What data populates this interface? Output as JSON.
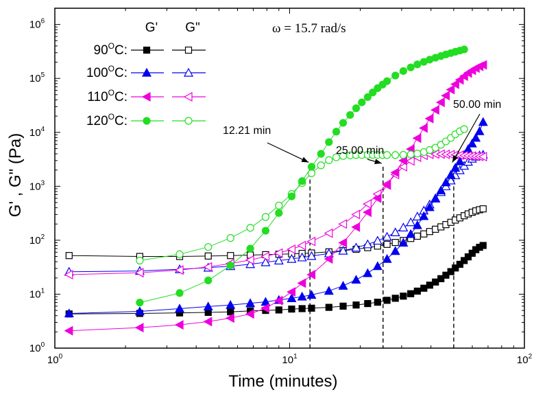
{
  "chart_data": {
    "type": "scatter",
    "xlabel": "Time (minutes)",
    "ylabel": "G' , G\" (Pa)",
    "x_scale": "log",
    "y_scale": "log",
    "xlim": [
      1,
      100
    ],
    "ylim": [
      1,
      2000000
    ],
    "x_ticks": [
      {
        "base": "10",
        "exp": "0",
        "value": 1
      },
      {
        "base": "10",
        "exp": "1",
        "value": 10
      },
      {
        "base": "10",
        "exp": "2",
        "value": 100
      }
    ],
    "y_ticks": [
      {
        "base": "10",
        "exp": "0",
        "value": 1
      },
      {
        "base": "10",
        "exp": "1",
        "value": 10
      },
      {
        "base": "10",
        "exp": "2",
        "value": 100
      },
      {
        "base": "10",
        "exp": "3",
        "value": 1000
      },
      {
        "base": "10",
        "exp": "4",
        "value": 10000
      },
      {
        "base": "10",
        "exp": "5",
        "value": 100000
      },
      {
        "base": "10",
        "exp": "6",
        "value": 1000000
      }
    ],
    "grid": false,
    "legend_position": "top-left",
    "legend_headers": [
      "G'",
      "G\""
    ],
    "annotation_top": "ω = 15.7 rad/s",
    "series": [
      {
        "temp": "90",
        "unit": "C:",
        "color": "#000000",
        "marker": "square",
        "gp": [
          [
            1.15,
            4.3
          ],
          [
            2.3,
            4.4
          ],
          [
            3.4,
            4.5
          ],
          [
            4.5,
            4.6
          ],
          [
            5.6,
            4.7
          ],
          [
            6.8,
            4.9
          ],
          [
            7.9,
            5.0
          ],
          [
            9.0,
            5.1
          ],
          [
            10.2,
            5.3
          ],
          [
            11.3,
            5.4
          ],
          [
            12.4,
            5.5
          ],
          [
            14.7,
            5.7
          ],
          [
            16.9,
            6.0
          ],
          [
            19.2,
            6.3
          ],
          [
            21.5,
            6.7
          ],
          [
            23.7,
            7.1
          ],
          [
            26.0,
            7.7
          ],
          [
            28.2,
            8.4
          ],
          [
            30.5,
            9.2
          ],
          [
            32.8,
            10.2
          ],
          [
            35.0,
            11.4
          ],
          [
            37.3,
            12.9
          ],
          [
            39.5,
            14.7
          ],
          [
            41.8,
            16.8
          ],
          [
            44.1,
            19.4
          ],
          [
            46.3,
            22.5
          ],
          [
            48.6,
            26.2
          ],
          [
            50.8,
            30.6
          ],
          [
            53.1,
            35.8
          ],
          [
            55.4,
            42.0
          ],
          [
            57.6,
            49.2
          ],
          [
            59.9,
            57.4
          ],
          [
            62.1,
            66.8
          ],
          [
            64.4,
            74.0
          ],
          [
            66.7,
            80.0
          ]
        ],
        "gpp": [
          [
            1.15,
            52
          ],
          [
            2.3,
            50
          ],
          [
            3.4,
            50
          ],
          [
            4.5,
            51
          ],
          [
            5.6,
            52
          ],
          [
            6.8,
            53
          ],
          [
            7.9,
            54
          ],
          [
            9.0,
            55
          ],
          [
            10.2,
            56
          ],
          [
            11.3,
            57
          ],
          [
            12.4,
            58
          ],
          [
            14.7,
            61
          ],
          [
            16.9,
            64
          ],
          [
            19.2,
            68
          ],
          [
            21.5,
            73
          ],
          [
            23.7,
            78
          ],
          [
            26.0,
            84
          ],
          [
            28.2,
            91
          ],
          [
            30.5,
            99
          ],
          [
            32.8,
            108
          ],
          [
            35.0,
            119
          ],
          [
            37.3,
            131
          ],
          [
            39.5,
            145
          ],
          [
            41.8,
            160
          ],
          [
            44.1,
            177
          ],
          [
            46.3,
            195
          ],
          [
            48.6,
            215
          ],
          [
            50.8,
            237
          ],
          [
            53.1,
            260
          ],
          [
            55.4,
            285
          ],
          [
            57.6,
            308
          ],
          [
            59.9,
            330
          ],
          [
            62.1,
            350
          ],
          [
            64.4,
            368
          ],
          [
            66.7,
            382
          ]
        ]
      },
      {
        "temp": "100",
        "unit": "C:",
        "color": "#0000ee",
        "marker": "triangle-up",
        "gp": [
          [
            1.15,
            4.4
          ],
          [
            2.3,
            4.8
          ],
          [
            3.4,
            5.4
          ],
          [
            4.5,
            5.9
          ],
          [
            5.6,
            6.3
          ],
          [
            6.8,
            6.8
          ],
          [
            7.9,
            7.2
          ],
          [
            9.0,
            7.8
          ],
          [
            10.2,
            8.4
          ],
          [
            11.3,
            9.0
          ],
          [
            12.4,
            9.7
          ],
          [
            14.7,
            11.5
          ],
          [
            16.9,
            14.3
          ],
          [
            19.2,
            18.5
          ],
          [
            21.5,
            24.5
          ],
          [
            23.7,
            33
          ],
          [
            26.0,
            45
          ],
          [
            28.2,
            63
          ],
          [
            30.5,
            90
          ],
          [
            32.8,
            130
          ],
          [
            35.0,
            190
          ],
          [
            37.3,
            280
          ],
          [
            39.5,
            410
          ],
          [
            41.8,
            590
          ],
          [
            44.1,
            840
          ],
          [
            46.3,
            1180
          ],
          [
            48.6,
            1630
          ],
          [
            50.8,
            2200
          ],
          [
            53.1,
            2900
          ],
          [
            55.4,
            3800
          ],
          [
            57.6,
            4900
          ],
          [
            59.9,
            6200
          ],
          [
            62.1,
            7900
          ],
          [
            64.4,
            10500
          ],
          [
            66.7,
            15500
          ]
        ],
        "gpp": [
          [
            1.15,
            26
          ],
          [
            2.3,
            27
          ],
          [
            3.4,
            29
          ],
          [
            4.5,
            31
          ],
          [
            5.6,
            33
          ],
          [
            6.8,
            36
          ],
          [
            7.9,
            39
          ],
          [
            9.0,
            42
          ],
          [
            10.2,
            45
          ],
          [
            11.3,
            48
          ],
          [
            12.4,
            51
          ],
          [
            14.7,
            57
          ],
          [
            16.9,
            64
          ],
          [
            19.2,
            73
          ],
          [
            21.5,
            84
          ],
          [
            23.7,
            98
          ],
          [
            26.0,
            116
          ],
          [
            28.2,
            140
          ],
          [
            30.5,
            172
          ],
          [
            32.8,
            215
          ],
          [
            35.0,
            275
          ],
          [
            37.3,
            355
          ],
          [
            39.5,
            460
          ],
          [
            41.8,
            600
          ],
          [
            44.1,
            780
          ],
          [
            46.3,
            1000
          ],
          [
            48.6,
            1280
          ],
          [
            50.8,
            1600
          ],
          [
            53.1,
            1980
          ],
          [
            55.4,
            2400
          ],
          [
            57.6,
            2850
          ],
          [
            59.9,
            3250
          ],
          [
            62.1,
            3550
          ],
          [
            64.4,
            3750
          ],
          [
            66.7,
            3850
          ]
        ]
      },
      {
        "temp": "110",
        "unit": "C:",
        "color": "#ee00dd",
        "marker": "triangle-left",
        "gp": [
          [
            1.15,
            2.1
          ],
          [
            2.3,
            2.4
          ],
          [
            3.4,
            2.7
          ],
          [
            4.5,
            3.1
          ],
          [
            5.6,
            3.6
          ],
          [
            6.8,
            4.3
          ],
          [
            7.9,
            5.5
          ],
          [
            9.0,
            7.6
          ],
          [
            10.2,
            11
          ],
          [
            11.3,
            16
          ],
          [
            12.4,
            23
          ],
          [
            14.7,
            45
          ],
          [
            16.9,
            90
          ],
          [
            19.2,
            175
          ],
          [
            21.5,
            330
          ],
          [
            23.7,
            600
          ],
          [
            26.0,
            1050
          ],
          [
            28.2,
            1800
          ],
          [
            30.5,
            3000
          ],
          [
            32.8,
            4900
          ],
          [
            35.0,
            7800
          ],
          [
            37.3,
            12000
          ],
          [
            39.5,
            18000
          ],
          [
            41.8,
            26000
          ],
          [
            44.1,
            36000
          ],
          [
            46.3,
            48000
          ],
          [
            48.6,
            62000
          ],
          [
            50.8,
            78000
          ],
          [
            53.1,
            94000
          ],
          [
            55.4,
            110000
          ],
          [
            57.6,
            126000
          ],
          [
            59.9,
            141000
          ],
          [
            62.1,
            155000
          ],
          [
            64.4,
            167000
          ],
          [
            66.7,
            178000
          ]
        ],
        "gpp": [
          [
            1.15,
            23
          ],
          [
            2.3,
            25
          ],
          [
            3.4,
            28
          ],
          [
            4.5,
            32
          ],
          [
            5.6,
            37
          ],
          [
            6.8,
            43
          ],
          [
            7.9,
            50
          ],
          [
            9.0,
            58
          ],
          [
            10.2,
            68
          ],
          [
            11.3,
            80
          ],
          [
            12.4,
            95
          ],
          [
            14.7,
            135
          ],
          [
            16.9,
            200
          ],
          [
            19.2,
            300
          ],
          [
            21.5,
            470
          ],
          [
            23.7,
            720
          ],
          [
            26.0,
            1100
          ],
          [
            28.2,
            1650
          ],
          [
            30.5,
            2300
          ],
          [
            32.8,
            2950
          ],
          [
            35.0,
            3450
          ],
          [
            37.3,
            3750
          ],
          [
            39.5,
            3900
          ],
          [
            41.8,
            3950
          ],
          [
            44.1,
            3950
          ],
          [
            46.3,
            3920
          ],
          [
            48.6,
            3870
          ],
          [
            50.8,
            3820
          ],
          [
            53.1,
            3770
          ],
          [
            55.4,
            3720
          ],
          [
            57.6,
            3680
          ],
          [
            59.9,
            3640
          ],
          [
            62.1,
            3600
          ],
          [
            64.4,
            3570
          ],
          [
            66.7,
            3550
          ]
        ]
      },
      {
        "temp": "120",
        "unit": "C:",
        "color": "#22dd22",
        "marker": "circle",
        "gp": [
          [
            2.3,
            7
          ],
          [
            3.4,
            10.5
          ],
          [
            4.5,
            18
          ],
          [
            5.6,
            34
          ],
          [
            6.8,
            70
          ],
          [
            7.9,
            150
          ],
          [
            9.0,
            320
          ],
          [
            10.2,
            650
          ],
          [
            11.3,
            1250
          ],
          [
            12.4,
            2300
          ],
          [
            13.6,
            4000
          ],
          [
            14.7,
            6600
          ],
          [
            15.8,
            10300
          ],
          [
            16.9,
            15000
          ],
          [
            18.1,
            21000
          ],
          [
            19.2,
            28000
          ],
          [
            20.3,
            36000
          ],
          [
            21.5,
            45000
          ],
          [
            22.6,
            55000
          ],
          [
            23.7,
            66000
          ],
          [
            24.9,
            77000
          ],
          [
            26.0,
            89000
          ],
          [
            28.2,
            113000
          ],
          [
            30.5,
            137000
          ],
          [
            32.8,
            160000
          ],
          [
            35.0,
            182000
          ],
          [
            37.3,
            203000
          ],
          [
            39.5,
            223000
          ],
          [
            41.8,
            242000
          ],
          [
            44.1,
            260000
          ],
          [
            46.3,
            278000
          ],
          [
            48.6,
            295000
          ],
          [
            50.8,
            312000
          ],
          [
            53.1,
            328000
          ],
          [
            55.4,
            345000
          ]
        ],
        "gpp": [
          [
            2.3,
            42
          ],
          [
            3.4,
            55
          ],
          [
            4.5,
            75
          ],
          [
            5.6,
            110
          ],
          [
            6.8,
            170
          ],
          [
            7.9,
            270
          ],
          [
            9.0,
            440
          ],
          [
            10.2,
            720
          ],
          [
            11.3,
            1150
          ],
          [
            12.4,
            1750
          ],
          [
            13.6,
            2450
          ],
          [
            14.7,
            3050
          ],
          [
            15.8,
            3450
          ],
          [
            16.9,
            3650
          ],
          [
            18.1,
            3750
          ],
          [
            19.2,
            3800
          ],
          [
            20.3,
            3820
          ],
          [
            21.5,
            3830
          ],
          [
            22.6,
            3830
          ],
          [
            23.7,
            3820
          ],
          [
            24.9,
            3810
          ],
          [
            26.0,
            3800
          ],
          [
            28.2,
            3800
          ],
          [
            30.5,
            3830
          ],
          [
            32.8,
            3900
          ],
          [
            35.0,
            4050
          ],
          [
            37.3,
            4300
          ],
          [
            39.5,
            4700
          ],
          [
            41.8,
            5200
          ],
          [
            44.1,
            5900
          ],
          [
            46.3,
            6800
          ],
          [
            48.6,
            7900
          ],
          [
            50.8,
            9200
          ],
          [
            53.1,
            10500
          ],
          [
            55.4,
            11500
          ]
        ]
      }
    ],
    "annotations": [
      {
        "label": "12.21 min",
        "x": 12.21,
        "y_target": 2400
      },
      {
        "label": "25.00 min",
        "x": 25.0,
        "y_target": 2300
      },
      {
        "label": "50.00 min",
        "x": 50.0,
        "y_target": 2400
      }
    ]
  }
}
